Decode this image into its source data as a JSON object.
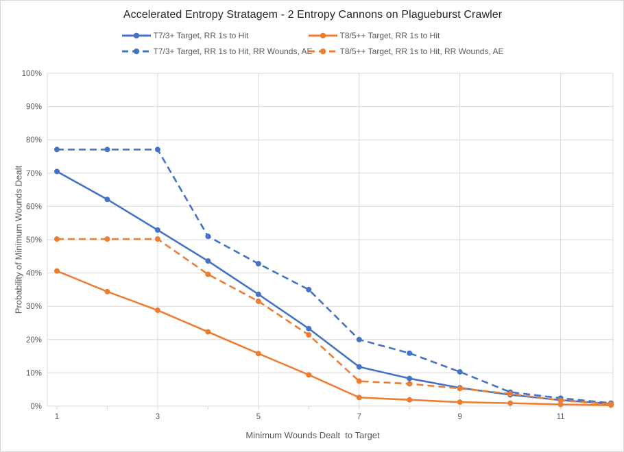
{
  "title": "Accelerated Entropy Stratagem - 2 Entropy Cannons on Plagueburst Crawler",
  "colors": {
    "blue": "#4472C4",
    "orange": "#ED7D31",
    "gridline": "#D9D9D9",
    "axis_text": "#595959",
    "title_text": "#262626",
    "background": "#FFFFFF"
  },
  "chart_data": {
    "type": "line",
    "title": "Accelerated Entropy Stratagem - 2 Entropy Cannons on Plagueburst Crawler",
    "xlabel": "Minimum Wounds Dealt  to Target",
    "ylabel": "Probability of Minimum Wounds Dealt",
    "xlim": [
      1,
      12
    ],
    "ylim": [
      0,
      100
    ],
    "grid": true,
    "legend_position": "top",
    "x": [
      1,
      2,
      3,
      4,
      5,
      6,
      7,
      8,
      9,
      10,
      11,
      12
    ],
    "x_tick_values": [
      1,
      3,
      5,
      7,
      9,
      11
    ],
    "x_tick_labels": [
      "1",
      "3",
      "5",
      "7",
      "9",
      "11"
    ],
    "y_tick_values": [
      0,
      10,
      20,
      30,
      40,
      50,
      60,
      70,
      80,
      90,
      100
    ],
    "y_tick_labels": [
      "0%",
      "10%",
      "20%",
      "30%",
      "40%",
      "50%",
      "60%",
      "70%",
      "80%",
      "90%",
      "100%"
    ],
    "series": [
      {
        "name": "T7/3+ Target, RR 1s to Hit",
        "color": "#4472C4",
        "dash": "solid",
        "values": [
          70.5,
          62.1,
          52.9,
          43.6,
          33.6,
          23.3,
          11.8,
          8.3,
          5.5,
          3.4,
          1.8,
          0.7
        ]
      },
      {
        "name": "T8/5++ Target, RR 1s to Hit",
        "color": "#ED7D31",
        "dash": "solid",
        "values": [
          40.6,
          34.4,
          28.8,
          22.3,
          15.8,
          9.4,
          2.6,
          1.9,
          1.2,
          0.9,
          0.5,
          0.3
        ]
      },
      {
        "name": "T7/3+ Target, RR 1s to Hit, RR Wounds, AE",
        "color": "#4472C4",
        "dash": "dashed",
        "values": [
          77.1,
          77.1,
          77.1,
          51.0,
          42.8,
          35.0,
          20.0,
          15.9,
          10.3,
          4.2,
          2.4,
          0.9
        ]
      },
      {
        "name": "T8/5++ Target, RR 1s to Hit, RR Wounds, AE",
        "color": "#ED7D31",
        "dash": "dashed",
        "values": [
          50.2,
          50.2,
          50.2,
          39.6,
          31.5,
          21.4,
          7.5,
          6.7,
          5.3,
          3.7,
          1.7,
          0.6
        ]
      }
    ]
  }
}
